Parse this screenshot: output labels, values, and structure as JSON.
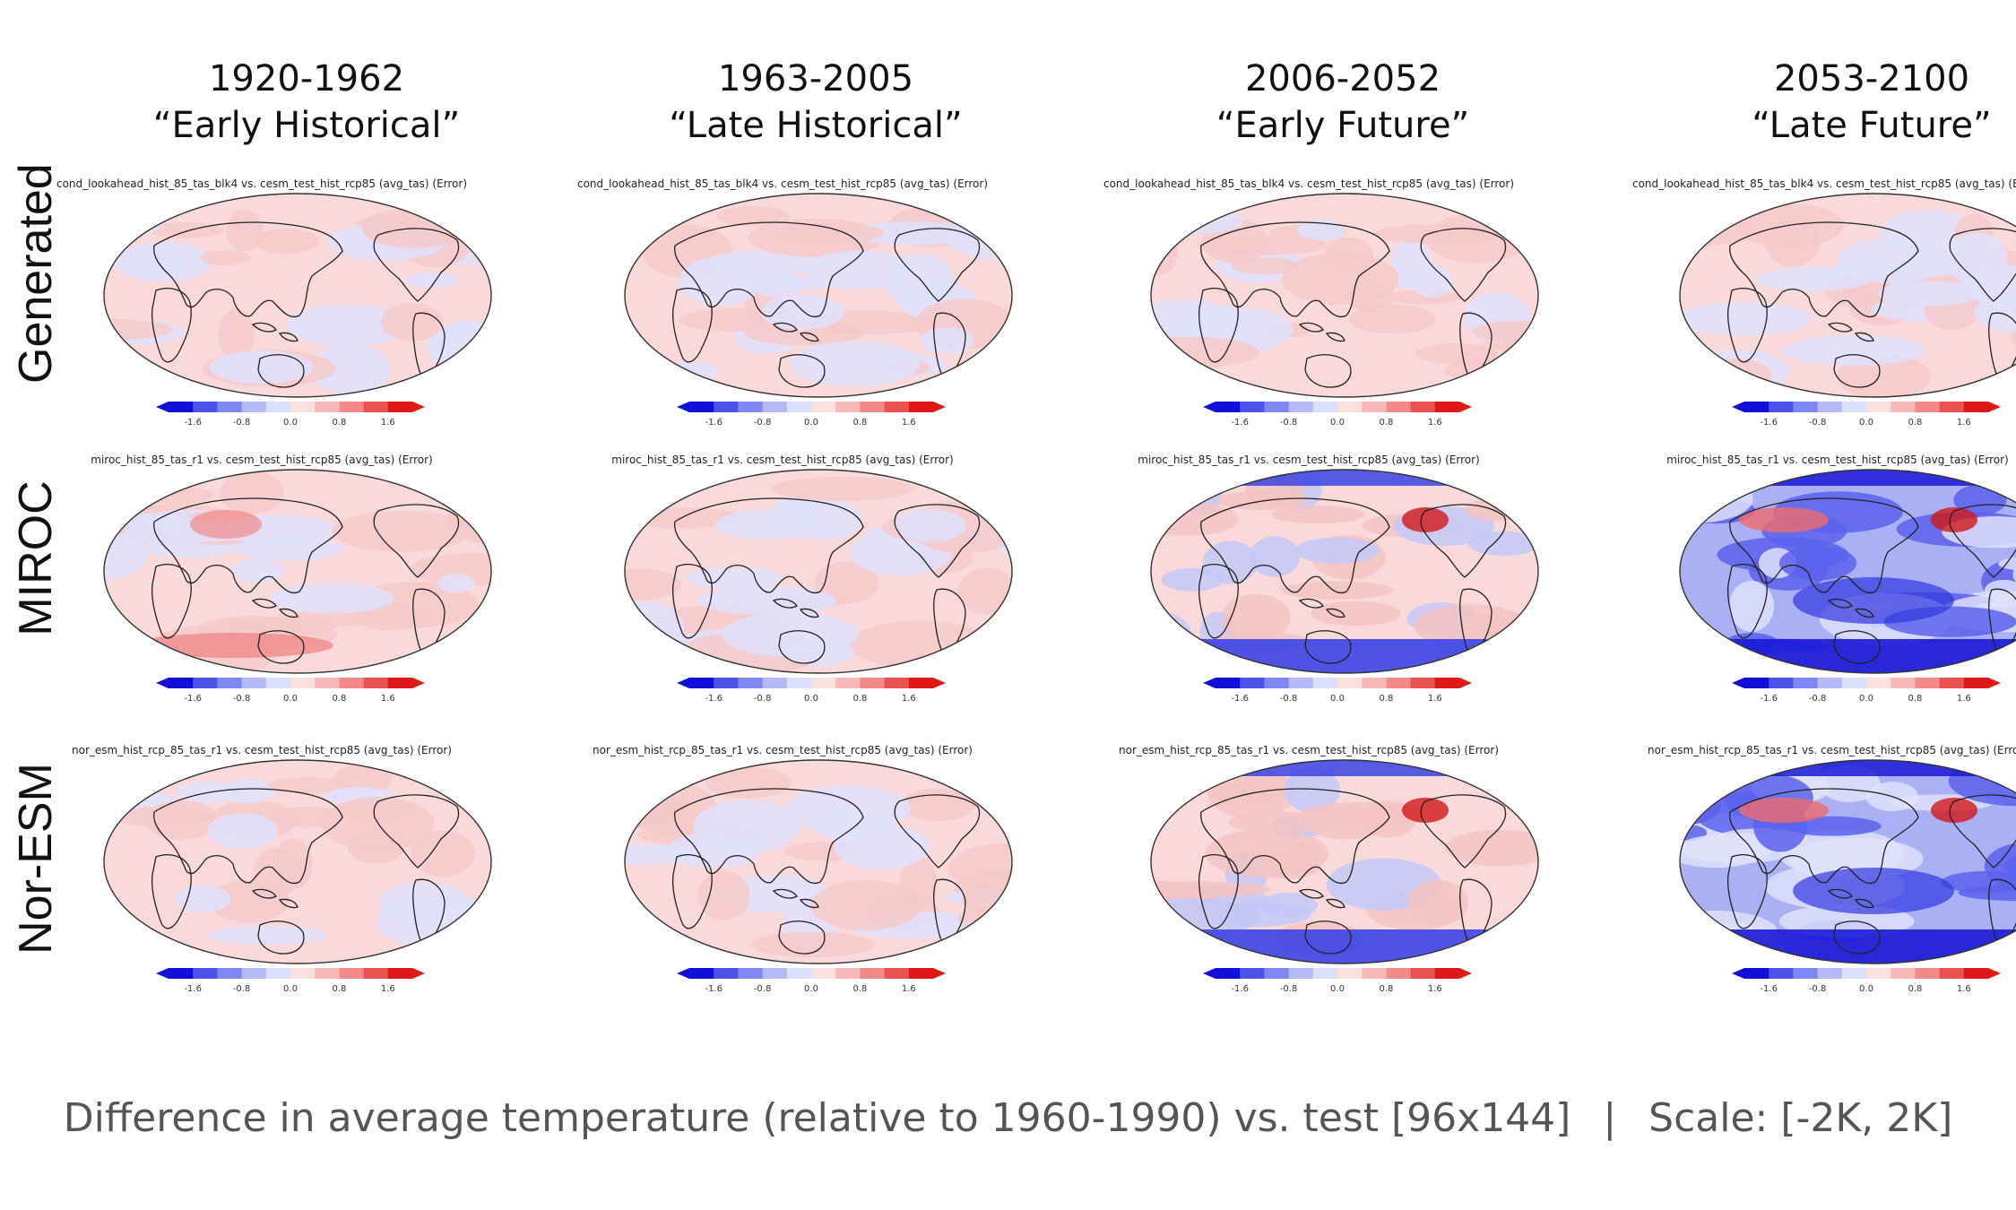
{
  "columns": [
    {
      "years": "1920-1962",
      "name": "“Early Historical”"
    },
    {
      "years": "1963-2005",
      "name": "“Late Historical”"
    },
    {
      "years": "2006-2052",
      "name": "“Early Future”"
    },
    {
      "years": "2053-2100",
      "name": "“Late Future”"
    }
  ],
  "rows": [
    {
      "label": "Generated",
      "title": "cond_lookahead_hist_85_tas_blk4 vs. cesm_test_hist_rcp85 (avg_tas) (Error)"
    },
    {
      "label": "MIROC",
      "title": "miroc_hist_85_tas_r1 vs. cesm_test_hist_rcp85 (avg_tas) (Error)"
    },
    {
      "label": "Nor-ESM",
      "title": "nor_esm_hist_rcp_85_tas_r1 vs. cesm_test_hist_rcp85 (avg_tas) (Error)"
    }
  ],
  "colorbar": {
    "ticks": [
      "-1.6",
      "-0.8",
      "0.0",
      "0.8",
      "1.6"
    ],
    "colors": [
      "#1010d8",
      "#4a52e8",
      "#7f88f2",
      "#b4baf7",
      "#dcdffb",
      "#fbe0e0",
      "#f7b9b9",
      "#f28a8a",
      "#ea5252",
      "#e01818"
    ]
  },
  "caption": {
    "main": "Difference in average temperature (relative to 1960-1990) vs. test [96x144]",
    "separator": "|",
    "scale": "Scale: [-2K, 2K]"
  },
  "colors": {
    "land_outline": "#222222",
    "pale_red": "#f9d9d9",
    "pale_blue": "#dfe1fb",
    "deep_blue": "#1a1ad6",
    "deep_red": "#d21818"
  }
}
